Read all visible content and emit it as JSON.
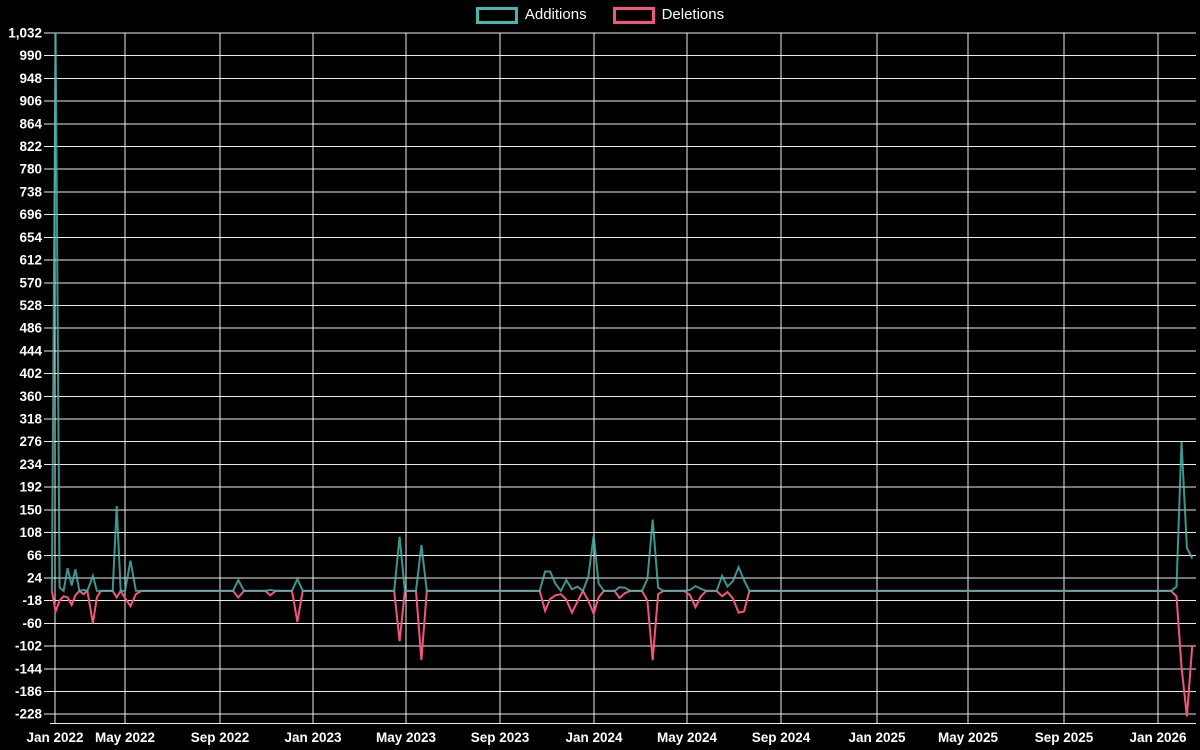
{
  "legend": {
    "items": [
      {
        "label": "Additions",
        "color": "#49b6ae"
      },
      {
        "label": "Deletions",
        "color": "#f4557c"
      }
    ]
  },
  "colors": {
    "background": "#000000",
    "grid": "#ffffff",
    "text": "#ffffff",
    "additions": "#49b6ae",
    "deletions": "#f4557c"
  },
  "chart_data": {
    "type": "line",
    "title": "",
    "xlabel": "",
    "ylabel": "",
    "legend_position": "top-center",
    "grid": true,
    "x_axis": {
      "interval": "weekly",
      "start": "2021-12-26",
      "end": "2026-02-15",
      "tick_labels": [
        "Jan 2022",
        "May 2022",
        "Sep 2022",
        "Jan 2023",
        "May 2023",
        "Sep 2023",
        "Jan 2024",
        "May 2024",
        "Sep 2024",
        "Jan 2025",
        "May 2025",
        "Sep 2025",
        "Jan 2026"
      ]
    },
    "y_axis": {
      "min": -228,
      "max": 1032,
      "step": 42,
      "tick_labels": [
        "1,032",
        "990",
        "948",
        "906",
        "864",
        "822",
        "780",
        "738",
        "696",
        "654",
        "612",
        "570",
        "528",
        "486",
        "444",
        "402",
        "360",
        "318",
        "276",
        "234",
        "192",
        "150",
        "108",
        "66",
        "24",
        "-18",
        "-60",
        "-102",
        "-144",
        "-186",
        "-228"
      ]
    },
    "baseline_value": 0,
    "series": [
      {
        "name": "Additions",
        "color": "#49b6ae",
        "default": 0,
        "points": {
          "2022-01-02": 1032,
          "2022-01-09": 6,
          "2022-01-23": 42,
          "2022-01-30": 10,
          "2022-02-06": 40,
          "2022-02-20": 2,
          "2022-03-06": 28,
          "2022-04-17": 157,
          "2022-05-08": 56,
          "2022-09-25": 20,
          "2022-11-06": 2,
          "2022-12-11": 22,
          "2023-04-23": 100,
          "2023-05-21": 85,
          "2023-10-29": 36,
          "2023-11-05": 36,
          "2023-11-12": 13,
          "2023-11-26": 20,
          "2023-12-03": 3,
          "2023-12-10": 8,
          "2023-12-24": 26,
          "2023-12-31": 102,
          "2024-01-07": 14,
          "2024-02-04": 7,
          "2024-02-11": 6,
          "2024-03-10": 22,
          "2024-03-17": 132,
          "2024-03-24": 6,
          "2024-05-05": 2,
          "2024-05-12": 9,
          "2024-05-19": 4,
          "2024-06-16": 28,
          "2024-06-23": 8,
          "2024-06-30": 18,
          "2024-07-07": 44,
          "2024-07-14": 20,
          "2026-01-25": 8,
          "2026-02-01": 276,
          "2026-02-08": 80,
          "2026-02-15": 60
        }
      },
      {
        "name": "Deletions",
        "color": "#f4557c",
        "default": 0,
        "points": {
          "2022-01-02": -38,
          "2022-01-09": -18,
          "2022-01-16": -10,
          "2022-01-23": -12,
          "2022-01-30": -26,
          "2022-02-06": -8,
          "2022-02-20": -6,
          "2022-03-06": -60,
          "2022-03-13": -12,
          "2022-04-17": -12,
          "2022-05-01": -13,
          "2022-05-08": -28,
          "2022-05-15": -6,
          "2022-09-25": -12,
          "2022-11-06": -8,
          "2022-12-11": -57,
          "2023-04-23": -93,
          "2023-05-21": -128,
          "2023-10-29": -37,
          "2023-11-05": -15,
          "2023-11-12": -8,
          "2023-11-19": -6,
          "2023-11-26": -16,
          "2023-12-03": -40,
          "2023-12-10": -20,
          "2023-12-24": -18,
          "2023-12-31": -42,
          "2024-01-07": -12,
          "2024-02-04": -13,
          "2024-02-11": -4,
          "2024-03-10": -18,
          "2024-03-17": -128,
          "2024-03-24": -6,
          "2024-05-05": -8,
          "2024-05-12": -30,
          "2024-05-19": -10,
          "2024-06-16": -10,
          "2024-06-23": -2,
          "2024-06-30": -14,
          "2024-07-07": -40,
          "2024-07-14": -38,
          "2026-01-25": -10,
          "2026-02-01": -140,
          "2026-02-08": -232,
          "2026-02-15": -100
        }
      }
    ]
  }
}
